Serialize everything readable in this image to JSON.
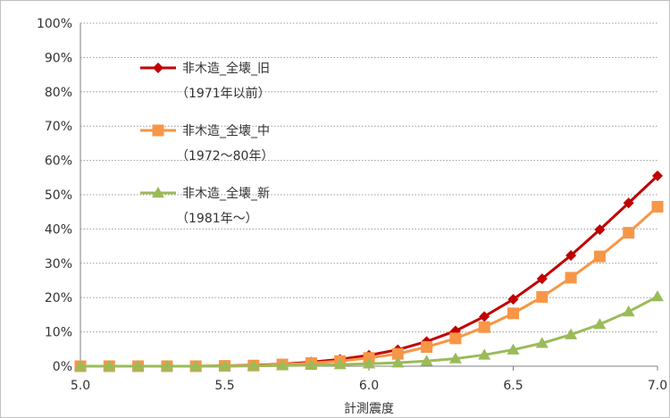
{
  "chart_data": {
    "type": "line",
    "title": "",
    "xlabel": "計測震度",
    "ylabel": "",
    "x": [
      5.0,
      5.1,
      5.2,
      5.3,
      5.4,
      5.5,
      5.6,
      5.7,
      5.8,
      5.9,
      6.0,
      6.1,
      6.2,
      6.3,
      6.4,
      6.5,
      6.6,
      6.7,
      6.8,
      6.9,
      7.0
    ],
    "xlim": [
      5.0,
      7.0
    ],
    "ylim": [
      0,
      100
    ],
    "x_ticks": [
      "5.0",
      "5.5",
      "6.0",
      "6.5",
      "7.0"
    ],
    "y_ticks": [
      "0%",
      "10%",
      "20%",
      "30%",
      "40%",
      "50%",
      "60%",
      "70%",
      "80%",
      "90%",
      "100%"
    ],
    "grid": "horizontal dotted",
    "legend_position": "upper-left",
    "series": [
      {
        "name": "非木造_全壊_旧",
        "name_line2": "（1971年以前）",
        "color": "#c00000",
        "marker": "diamond",
        "values": [
          0,
          0,
          0,
          0,
          0,
          0.1,
          0.3,
          0.6,
          1.2,
          2.0,
          3.2,
          4.8,
          7.2,
          10.3,
          14.5,
          19.5,
          25.5,
          32.3,
          39.8,
          47.6,
          55.5
        ]
      },
      {
        "name": "非木造_全壊_中",
        "name_line2": "（1972～80年）",
        "color": "#f79646",
        "marker": "square",
        "values": [
          0,
          0,
          0,
          0,
          0,
          0.1,
          0.2,
          0.5,
          0.9,
          1.5,
          2.4,
          3.6,
          5.6,
          8.1,
          11.4,
          15.4,
          20.2,
          25.8,
          32.0,
          38.9,
          46.5
        ]
      },
      {
        "name": "非木造_全壊_新",
        "name_line2": "（1981年～）",
        "color": "#9bbb59",
        "marker": "triangle",
        "values": [
          0,
          0,
          0,
          0,
          0,
          0,
          0.1,
          0.2,
          0.3,
          0.5,
          0.7,
          1.0,
          1.5,
          2.2,
          3.3,
          4.8,
          6.7,
          9.2,
          12.2,
          15.9,
          20.3
        ]
      }
    ]
  }
}
